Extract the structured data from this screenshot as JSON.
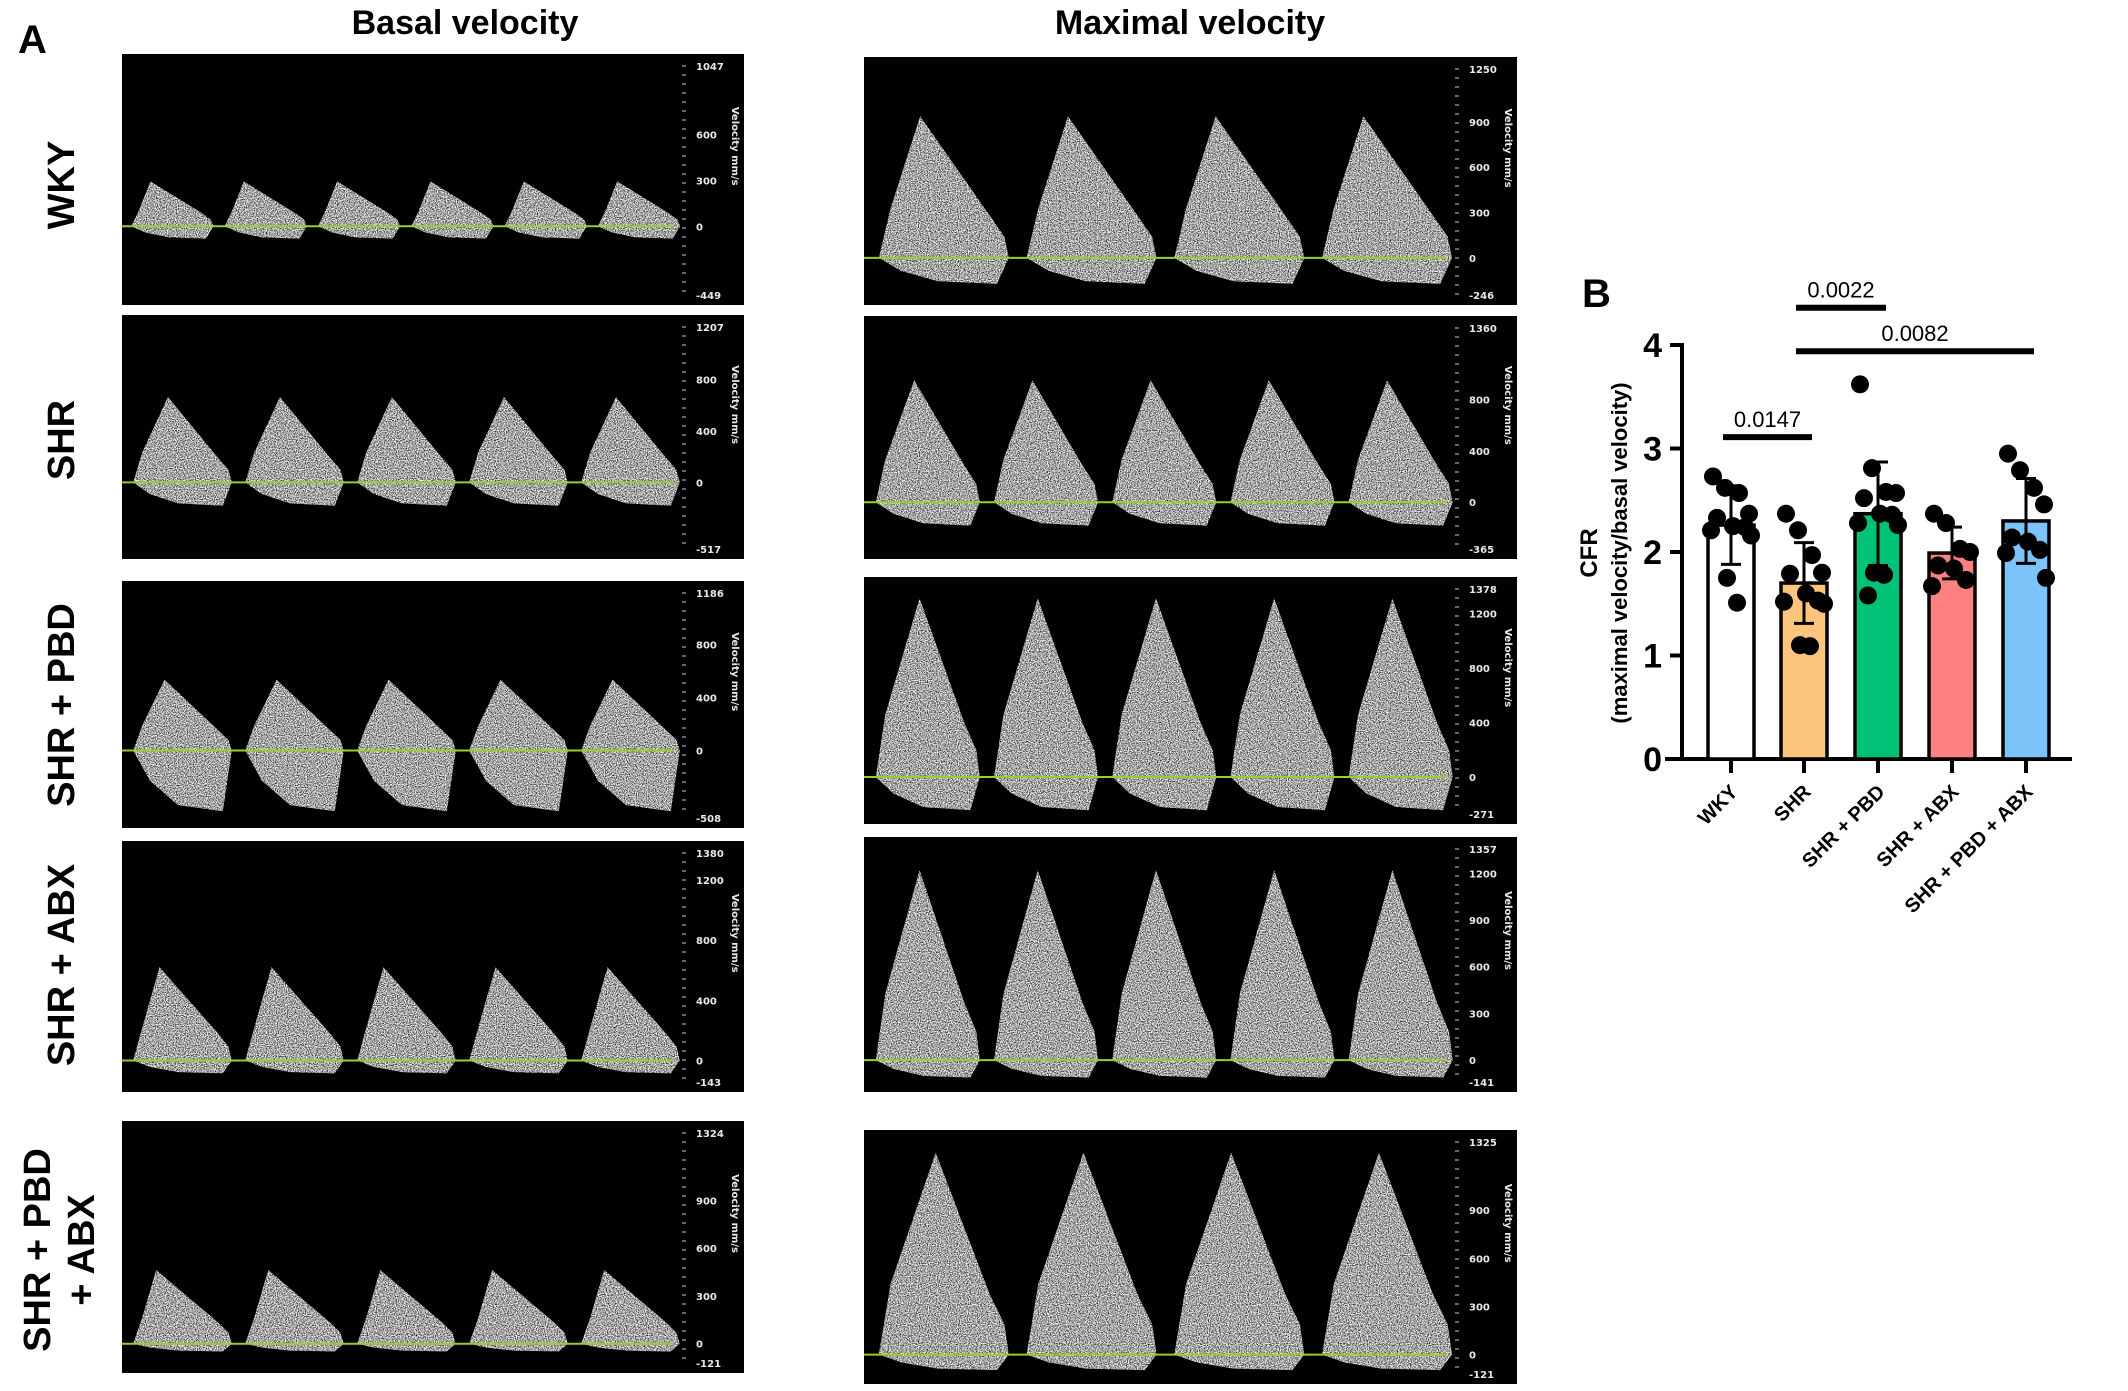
{
  "panel_a": {
    "label": "A",
    "columns": [
      "Basal velocity",
      "Maximal velocity"
    ],
    "rows": [
      "WKY",
      "SHR",
      "SHR + PBD",
      "SHR + ABX",
      "SHR + PBD\n+ ABX"
    ],
    "axis_unit": "Velocity mm/s",
    "baseline_color": "#9acd32",
    "basal_ticks": [
      [
        "1047",
        "600",
        "300",
        "0",
        "-449"
      ],
      [
        "1207",
        "800",
        "400",
        "0",
        "-517"
      ],
      [
        "1186",
        "800",
        "400",
        "0",
        "-508"
      ],
      [
        "1380",
        "1200",
        "800",
        "400",
        "0",
        "-143"
      ],
      [
        "1324",
        "900",
        "600",
        "300",
        "0",
        "-121"
      ]
    ],
    "maximal_ticks": [
      [
        "1250",
        "900",
        "600",
        "300",
        "0",
        "-246"
      ],
      [
        "1360",
        "800",
        "400",
        "0",
        "-365"
      ],
      [
        "1378",
        "1200",
        "800",
        "400",
        "0",
        "-271"
      ],
      [
        "1357",
        "1200",
        "900",
        "600",
        "300",
        "0",
        "-141"
      ],
      [
        "1325",
        "900",
        "600",
        "300",
        "0",
        "-121"
      ]
    ]
  },
  "panel_b": {
    "label": "B"
  },
  "chart_data": {
    "type": "bar",
    "ylabel": "CFR",
    "ylabel_sub": "(maximal velocity/basal velocity)",
    "ylim": [
      0,
      4
    ],
    "yticks": [
      "0",
      "1",
      "2",
      "3",
      "4"
    ],
    "categories": [
      "WKY",
      "SHR",
      "SHR + PBD",
      "SHR + ABX",
      "SHR + PBD + ABX"
    ],
    "colors": [
      "#ffffff",
      "#fdc47e",
      "#00c176",
      "#ff8080",
      "#7cc3fa"
    ],
    "means": [
      2.26,
      1.7,
      2.37,
      1.99,
      2.3
    ],
    "sd": [
      0.38,
      0.39,
      0.5,
      0.25,
      0.41
    ],
    "points": [
      [
        2.73,
        2.62,
        2.57,
        2.37,
        2.33,
        2.25,
        2.24,
        2.21,
        2.16,
        1.75,
        1.51
      ],
      [
        2.37,
        2.21,
        1.97,
        1.8,
        1.79,
        1.6,
        1.53,
        1.52,
        1.5,
        1.1,
        1.09
      ],
      [
        3.62,
        2.81,
        2.58,
        2.57,
        2.52,
        2.37,
        2.36,
        2.28,
        2.26,
        1.8,
        1.78,
        1.58
      ],
      [
        2.37,
        2.28,
        2.03,
        2.0,
        1.87,
        1.84,
        1.73,
        1.67
      ],
      [
        2.95,
        2.79,
        2.62,
        2.46,
        2.14,
        2.1,
        2.02,
        1.99,
        1.75
      ]
    ],
    "comparisons": [
      {
        "from": "WKY",
        "to": "SHR",
        "p": "0.0147",
        "y": 3.11
      },
      {
        "from": "SHR",
        "to": "SHR + PBD",
        "p": "0.0022",
        "y": 4.36
      },
      {
        "from": "SHR",
        "to": "SHR + PBD + ABX",
        "p": "0.0082",
        "y": 3.94
      }
    ]
  }
}
